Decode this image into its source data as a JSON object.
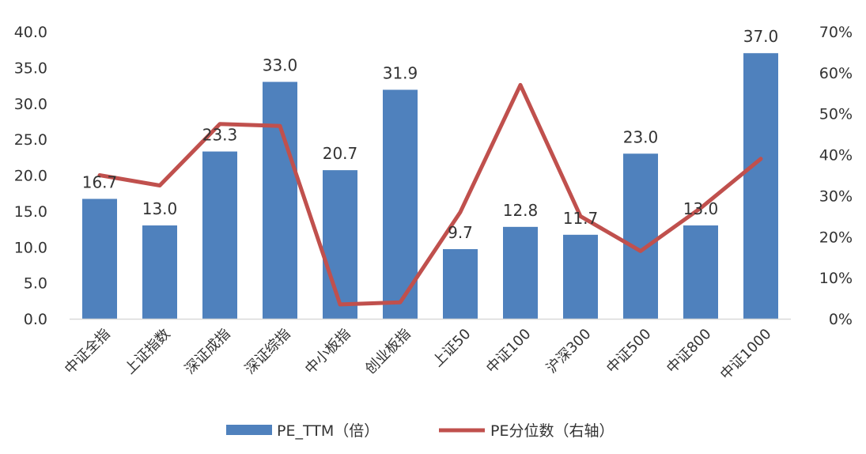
{
  "chart_data": {
    "type": "bar",
    "categories": [
      "中证全指",
      "上证指数",
      "深证成指",
      "深证综指",
      "中小板指",
      "创业板指",
      "上证50",
      "中证100",
      "沪深300",
      "中证500",
      "中证800",
      "中证1000"
    ],
    "series": [
      {
        "name": "PE_TTM（倍）",
        "type": "bar",
        "axis": "left",
        "values": [
          16.7,
          13.0,
          23.3,
          33.0,
          20.7,
          31.9,
          9.7,
          12.8,
          11.7,
          23.0,
          13.0,
          37.0
        ],
        "labels": [
          "16.7",
          "13.0",
          "23.3",
          "33.0",
          "20.7",
          "31.9",
          "9.7",
          "12.8",
          "11.7",
          "23.0",
          "13.0",
          "37.0"
        ]
      },
      {
        "name": "PE分位数（右轴）",
        "type": "line",
        "axis": "right",
        "values": [
          0.35,
          0.325,
          0.475,
          0.47,
          0.035,
          0.04,
          0.26,
          0.57,
          0.25,
          0.165,
          0.27,
          0.39
        ]
      }
    ],
    "y_left": {
      "ylim": [
        0,
        40
      ],
      "ticks": [
        "0.0",
        "5.0",
        "10.0",
        "15.0",
        "20.0",
        "25.0",
        "30.0",
        "35.0",
        "40.0"
      ]
    },
    "y_right": {
      "ylim": [
        0,
        0.7
      ],
      "ticks": [
        "0%",
        "10%",
        "20%",
        "30%",
        "40%",
        "50%",
        "60%",
        "70%"
      ]
    },
    "grid": false,
    "legend_position": "bottom",
    "colors": {
      "bar": "#4f81bd",
      "line": "#c0504d",
      "axis": "#d9d9d9",
      "text": "#333333"
    }
  }
}
